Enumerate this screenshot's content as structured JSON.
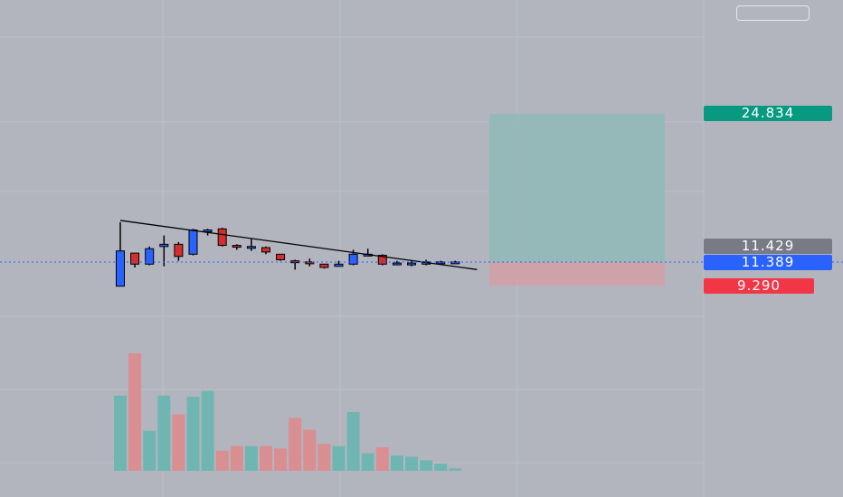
{
  "chart_data": {
    "type": "candlestick",
    "title": "",
    "xlabel": "",
    "ylabel": "",
    "ylim": [
      6,
      32
    ],
    "grid": true,
    "colors": {
      "up_body": "#2962ff",
      "down_body": "#d32f2f",
      "wick": "#000000",
      "vol_up": "#6fb6b2",
      "vol_down": "#d98e91",
      "target_zone": "#8fb8b8",
      "stop_zone": "#cfa1a6",
      "trendline": "#000000",
      "entry_line": "#2962ff"
    },
    "candles": [
      {
        "o": 9.2,
        "h": 15.0,
        "l": 9.2,
        "c": 12.4,
        "v": 0.64
      },
      {
        "o": 12.2,
        "h": 12.2,
        "l": 10.9,
        "c": 11.2,
        "v": 1.0
      },
      {
        "o": 11.2,
        "h": 12.8,
        "l": 11.1,
        "c": 12.6,
        "v": 0.34
      },
      {
        "o": 12.8,
        "h": 13.8,
        "l": 11.0,
        "c": 13.0,
        "v": 0.64
      },
      {
        "o": 13.0,
        "h": 13.2,
        "l": 11.5,
        "c": 11.9,
        "v": 0.48
      },
      {
        "o": 12.1,
        "h": 14.4,
        "l": 12.0,
        "c": 14.3,
        "v": 0.63
      },
      {
        "o": 14.3,
        "h": 14.4,
        "l": 13.8,
        "c": 14.3,
        "v": 0.68
      },
      {
        "o": 14.4,
        "h": 14.5,
        "l": 12.8,
        "c": 12.9,
        "v": 0.17
      },
      {
        "o": 12.9,
        "h": 13.0,
        "l": 12.5,
        "c": 12.8,
        "v": 0.21
      },
      {
        "o": 12.8,
        "h": 13.5,
        "l": 12.4,
        "c": 12.8,
        "v": 0.21
      },
      {
        "o": 12.7,
        "h": 12.8,
        "l": 12.1,
        "c": 12.3,
        "v": 0.21
      },
      {
        "o": 12.1,
        "h": 12.1,
        "l": 11.5,
        "c": 11.6,
        "v": 0.19
      },
      {
        "o": 11.5,
        "h": 11.6,
        "l": 10.7,
        "c": 11.4,
        "v": 0.45
      },
      {
        "o": 11.4,
        "h": 11.7,
        "l": 11.0,
        "c": 11.3,
        "v": 0.35
      },
      {
        "o": 11.2,
        "h": 11.2,
        "l": 10.8,
        "c": 10.9,
        "v": 0.23
      },
      {
        "o": 11.0,
        "h": 11.5,
        "l": 11.0,
        "c": 11.2,
        "v": 0.21
      },
      {
        "o": 11.2,
        "h": 12.5,
        "l": 11.1,
        "c": 12.1,
        "v": 0.5
      },
      {
        "o": 12.1,
        "h": 12.6,
        "l": 11.9,
        "c": 12.1,
        "v": 0.15
      },
      {
        "o": 12.0,
        "h": 12.1,
        "l": 11.1,
        "c": 11.2,
        "v": 0.2
      },
      {
        "o": 11.3,
        "h": 11.5,
        "l": 11.1,
        "c": 11.3,
        "v": 0.13
      },
      {
        "o": 11.2,
        "h": 11.5,
        "l": 11.0,
        "c": 11.3,
        "v": 0.12
      },
      {
        "o": 11.2,
        "h": 11.6,
        "l": 11.1,
        "c": 11.4,
        "v": 0.09
      },
      {
        "o": 11.4,
        "h": 11.5,
        "l": 11.3,
        "c": 11.4,
        "v": 0.06
      },
      {
        "o": 11.4,
        "h": 11.5,
        "l": 11.3,
        "c": 11.4,
        "v": 0.02
      }
    ],
    "trendline": {
      "from": {
        "index": 0,
        "price": 15.0
      },
      "to": {
        "index": 24.5,
        "price": 11.2
      }
    },
    "entry_price": 11.389,
    "last_price": 11.429,
    "target_price": 24.834,
    "stop_price": 9.29,
    "labels": {
      "target": "24.834",
      "last": "11.429",
      "entry": "11.389",
      "stop": "9.290"
    }
  }
}
